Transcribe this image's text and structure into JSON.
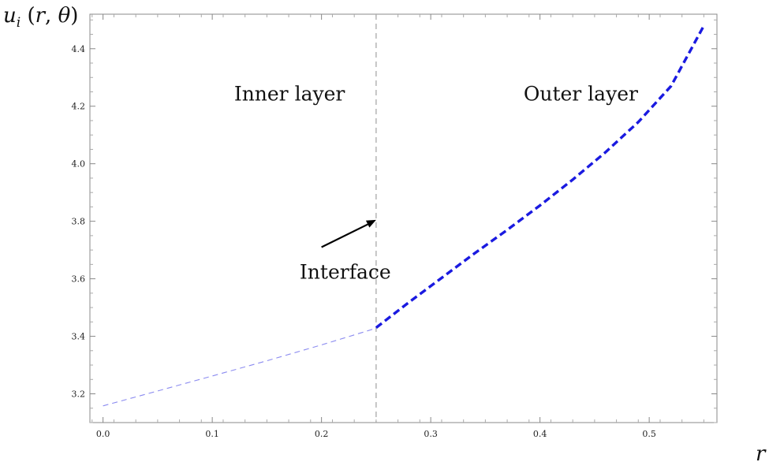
{
  "chart_data": {
    "type": "line",
    "ylabel": "u_i (r, θ)",
    "xlabel": "r",
    "xlim": [
      -0.012,
      0.562
    ],
    "ylim": [
      3.1,
      4.52
    ],
    "x_ticks": [
      0.0,
      0.1,
      0.2,
      0.3,
      0.4,
      0.5
    ],
    "x_tick_labels": [
      "0.0",
      "0.1",
      "0.2",
      "0.3",
      "0.4",
      "0.5"
    ],
    "y_ticks": [
      3.2,
      3.4,
      3.6,
      3.8,
      4.0,
      4.2,
      4.4
    ],
    "y_tick_labels": [
      "3.2",
      "3.4",
      "3.6",
      "3.8",
      "4.0",
      "4.2",
      "4.4"
    ],
    "interface_x": 0.25,
    "regions": [
      {
        "label": "Inner layer",
        "x": 0.12,
        "y": 4.22
      },
      {
        "label": "Outer layer",
        "x": 0.385,
        "y": 4.22
      }
    ],
    "annotation": {
      "label": "Interface",
      "text_x": 0.18,
      "text_y": 3.6,
      "arrow_from": [
        0.2,
        3.71
      ],
      "arrow_to": [
        0.25,
        3.805
      ]
    },
    "series": [
      {
        "color": "#8b8bf0",
        "style": "thin-dashed",
        "x": [
          0.0,
          0.05,
          0.1,
          0.15,
          0.2,
          0.25
        ],
        "y": [
          3.158,
          3.21,
          3.262,
          3.315,
          3.37,
          3.428
        ]
      },
      {
        "color": "#1a1ae0",
        "style": "thick-dashed",
        "x": [
          0.25,
          0.28,
          0.31,
          0.34,
          0.37,
          0.4,
          0.43,
          0.46,
          0.49,
          0.52,
          0.55
        ],
        "y": [
          3.43,
          3.518,
          3.603,
          3.688,
          3.77,
          3.855,
          3.945,
          4.04,
          4.145,
          4.27,
          4.48
        ]
      }
    ],
    "grid": false
  }
}
